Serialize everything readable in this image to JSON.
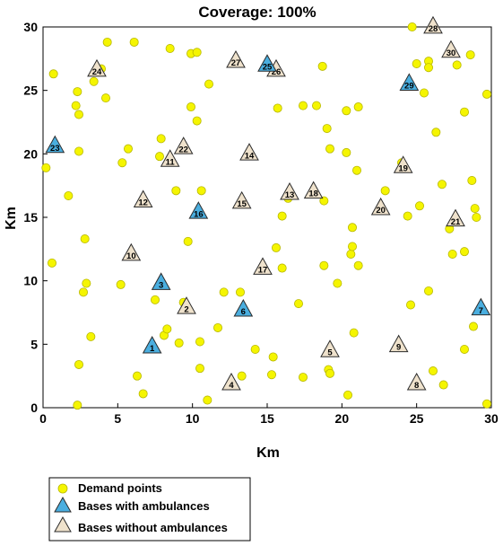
{
  "chart_data": {
    "type": "scatter",
    "title": "Coverage: 100%",
    "xlabel": "Km",
    "ylabel": "Km",
    "xlim": [
      0,
      30
    ],
    "ylim": [
      0,
      30
    ],
    "xticks": [
      "0",
      "5",
      "10",
      "15",
      "20",
      "25",
      "30"
    ],
    "yticks": [
      "0",
      "5",
      "10",
      "15",
      "20",
      "25",
      "30"
    ],
    "grid": false,
    "legend_position": "bottom-left",
    "colors": {
      "demand": "#f5f500",
      "demand_edge": "#b8b800",
      "with_ambulance": "#4aaedf",
      "without_ambulance": "#efe2cc",
      "triangle_edge": "#2b2b2b"
    },
    "series": [
      {
        "name": "Demand points",
        "marker": "circle",
        "points": [
          [
            0.2,
            18.9
          ],
          [
            0.7,
            26.3
          ],
          [
            0.6,
            11.4
          ],
          [
            1.7,
            16.7
          ],
          [
            2.2,
            23.8
          ],
          [
            2.3,
            24.9
          ],
          [
            2.4,
            23.1
          ],
          [
            2.4,
            20.2
          ],
          [
            2.4,
            3.4
          ],
          [
            2.3,
            0.2
          ],
          [
            2.7,
            9.1
          ],
          [
            2.8,
            13.3
          ],
          [
            2.9,
            9.8
          ],
          [
            3.2,
            5.6
          ],
          [
            3.4,
            25.7
          ],
          [
            3.9,
            26.7
          ],
          [
            4.2,
            24.4
          ],
          [
            4.3,
            28.8
          ],
          [
            5.2,
            9.7
          ],
          [
            5.3,
            19.3
          ],
          [
            5.7,
            20.4
          ],
          [
            6.1,
            28.8
          ],
          [
            6.3,
            2.5
          ],
          [
            6.7,
            1.1
          ],
          [
            7.5,
            8.5
          ],
          [
            7.8,
            19.8
          ],
          [
            7.9,
            21.2
          ],
          [
            8.1,
            5.7
          ],
          [
            8.3,
            6.2
          ],
          [
            8.5,
            28.3
          ],
          [
            8.9,
            17.1
          ],
          [
            9.1,
            5.1
          ],
          [
            9.4,
            8.3
          ],
          [
            9.7,
            13.1
          ],
          [
            9.9,
            27.9
          ],
          [
            9.9,
            23.7
          ],
          [
            10.3,
            28.0
          ],
          [
            10.3,
            22.6
          ],
          [
            10.6,
            17.1
          ],
          [
            10.5,
            5.2
          ],
          [
            10.5,
            3.1
          ],
          [
            11.0,
            0.6
          ],
          [
            11.1,
            25.5
          ],
          [
            11.7,
            6.3
          ],
          [
            12.1,
            9.1
          ],
          [
            13.2,
            9.1
          ],
          [
            13.3,
            2.5
          ],
          [
            14.2,
            4.6
          ],
          [
            15.3,
            2.6
          ],
          [
            15.4,
            4.0
          ],
          [
            15.6,
            12.6
          ],
          [
            15.7,
            23.6
          ],
          [
            16.0,
            15.1
          ],
          [
            16.0,
            11.0
          ],
          [
            16.4,
            16.5
          ],
          [
            17.1,
            8.2
          ],
          [
            17.4,
            2.4
          ],
          [
            17.4,
            23.8
          ],
          [
            18.3,
            23.8
          ],
          [
            18.7,
            26.9
          ],
          [
            18.8,
            16.3
          ],
          [
            18.8,
            11.2
          ],
          [
            19.0,
            22.0
          ],
          [
            19.2,
            20.4
          ],
          [
            19.1,
            3.0
          ],
          [
            19.2,
            2.7
          ],
          [
            19.7,
            9.8
          ],
          [
            20.3,
            20.1
          ],
          [
            20.3,
            23.4
          ],
          [
            20.4,
            1.0
          ],
          [
            20.6,
            12.1
          ],
          [
            20.7,
            14.2
          ],
          [
            20.7,
            12.7
          ],
          [
            20.8,
            5.9
          ],
          [
            21.0,
            18.7
          ],
          [
            21.1,
            23.7
          ],
          [
            21.1,
            11.2
          ],
          [
            22.9,
            17.1
          ],
          [
            24.0,
            19.3
          ],
          [
            24.4,
            15.1
          ],
          [
            24.6,
            8.1
          ],
          [
            24.7,
            30.0
          ],
          [
            25.0,
            27.1
          ],
          [
            25.2,
            15.9
          ],
          [
            25.5,
            24.8
          ],
          [
            25.8,
            27.3
          ],
          [
            25.8,
            26.8
          ],
          [
            25.8,
            9.2
          ],
          [
            26.1,
            30.0
          ],
          [
            26.1,
            2.9
          ],
          [
            26.3,
            21.7
          ],
          [
            26.7,
            17.6
          ],
          [
            26.8,
            1.8
          ],
          [
            27.2,
            14.1
          ],
          [
            27.4,
            12.1
          ],
          [
            27.7,
            27.0
          ],
          [
            28.2,
            12.3
          ],
          [
            28.2,
            23.3
          ],
          [
            28.2,
            4.6
          ],
          [
            28.6,
            27.8
          ],
          [
            28.7,
            17.9
          ],
          [
            28.8,
            6.4
          ],
          [
            28.9,
            15.7
          ],
          [
            29.0,
            15.0
          ],
          [
            29.7,
            24.7
          ],
          [
            29.7,
            0.3
          ]
        ]
      },
      {
        "name": "Bases with ambulances",
        "marker": "triangle",
        "points": [
          {
            "label": "1",
            "x": 7.3,
            "y": 4.8
          },
          {
            "label": "3",
            "x": 7.9,
            "y": 9.8
          },
          {
            "label": "6",
            "x": 13.4,
            "y": 7.7
          },
          {
            "label": "7",
            "x": 29.3,
            "y": 7.8
          },
          {
            "label": "16",
            "x": 10.4,
            "y": 15.4
          },
          {
            "label": "23",
            "x": 0.8,
            "y": 20.6
          },
          {
            "label": "25",
            "x": 15.0,
            "y": 27.0
          },
          {
            "label": "29",
            "x": 24.5,
            "y": 25.5
          }
        ]
      },
      {
        "name": "Bases without ambulances",
        "marker": "triangle",
        "points": [
          {
            "label": "2",
            "x": 9.6,
            "y": 7.9
          },
          {
            "label": "4",
            "x": 12.6,
            "y": 1.9
          },
          {
            "label": "5",
            "x": 19.2,
            "y": 4.5
          },
          {
            "label": "8",
            "x": 25.0,
            "y": 1.9
          },
          {
            "label": "9",
            "x": 23.8,
            "y": 4.9
          },
          {
            "label": "10",
            "x": 5.9,
            "y": 12.1
          },
          {
            "label": "11",
            "x": 8.5,
            "y": 19.5
          },
          {
            "label": "12",
            "x": 6.7,
            "y": 16.3
          },
          {
            "label": "13",
            "x": 16.5,
            "y": 16.9
          },
          {
            "label": "14",
            "x": 13.8,
            "y": 20.0
          },
          {
            "label": "15",
            "x": 13.3,
            "y": 16.2
          },
          {
            "label": "17",
            "x": 14.7,
            "y": 11.0
          },
          {
            "label": "18",
            "x": 18.1,
            "y": 17.0
          },
          {
            "label": "19",
            "x": 24.1,
            "y": 19.0
          },
          {
            "label": "20",
            "x": 22.6,
            "y": 15.7
          },
          {
            "label": "21",
            "x": 27.6,
            "y": 14.8
          },
          {
            "label": "22",
            "x": 9.4,
            "y": 20.5
          },
          {
            "label": "24",
            "x": 3.6,
            "y": 26.6
          },
          {
            "label": "26",
            "x": 15.6,
            "y": 26.6
          },
          {
            "label": "27",
            "x": 12.9,
            "y": 27.3
          },
          {
            "label": "28",
            "x": 26.1,
            "y": 30.0
          },
          {
            "label": "30",
            "x": 27.3,
            "y": 28.1
          }
        ]
      }
    ]
  }
}
